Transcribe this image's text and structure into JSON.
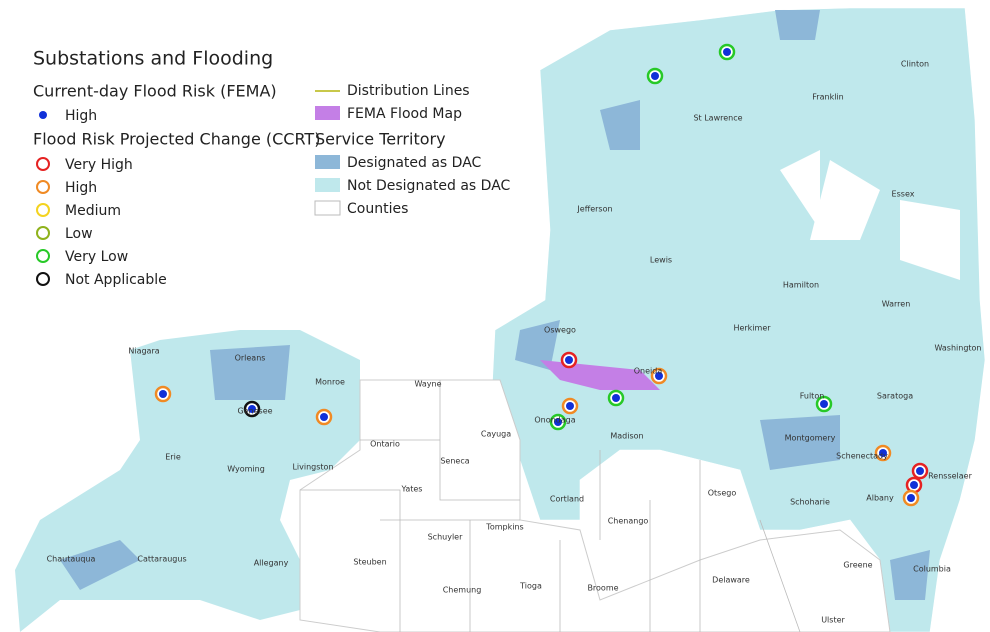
{
  "title": "Substations and Flooding",
  "legend": {
    "flood_risk": {
      "title": "Current-day Flood Risk (FEMA)",
      "items": [
        "High"
      ]
    },
    "projected_change": {
      "title": "Flood Risk Projected Change (CCRT)",
      "items": [
        "Very High",
        "High",
        "Medium",
        "Low",
        "Very Low",
        "Not Applicable"
      ]
    },
    "layers": {
      "items": [
        "Distribution Lines",
        "FEMA Flood Map"
      ]
    },
    "service_territory": {
      "title": "Service Territory",
      "items": [
        "Designated as DAC",
        "Not Designated as DAC",
        "Counties"
      ]
    }
  },
  "counties": [
    "Clinton",
    "Franklin",
    "St Lawrence",
    "Essex",
    "Jefferson",
    "Lewis",
    "Hamilton",
    "Warren",
    "Washington",
    "Herkimer",
    "Oswego",
    "Oneida",
    "Fulton",
    "Saratoga",
    "Niagara",
    "Orleans",
    "Monroe",
    "Wayne",
    "Genesee",
    "Ontario",
    "Seneca",
    "Cayuga",
    "Onondaga",
    "Madison",
    "Montgomery",
    "Schenectady",
    "Rensselaer",
    "Erie",
    "Wyoming",
    "Livingston",
    "Yates",
    "Cortland",
    "Otsego",
    "Schoharie",
    "Albany",
    "Chenango",
    "Tompkins",
    "Schuyler",
    "Chautauqua",
    "Cattaraugus",
    "Allegany",
    "Steuben",
    "Chemung",
    "Tioga",
    "Broome",
    "Delaware",
    "Greene",
    "Columbia",
    "Ulster"
  ]
}
